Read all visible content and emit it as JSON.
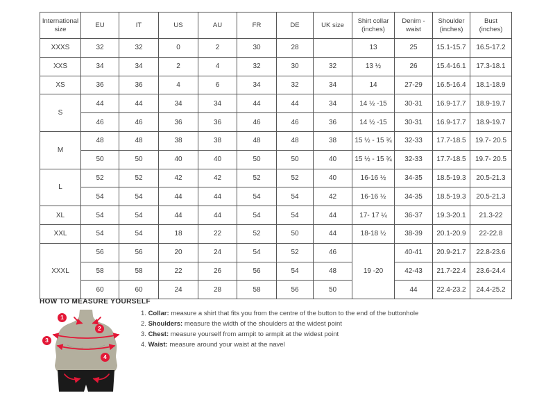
{
  "colors": {
    "accent": "#e31837",
    "torso": "#b3af9e",
    "shorts": "#1a1a1a",
    "border": "#555555",
    "text": "#3d3d3d"
  },
  "table": {
    "columns": [
      "International\nsize",
      "EU",
      "IT",
      "US",
      "AU",
      "FR",
      "DE",
      "UK size",
      "Shirt collar\n(inches)",
      "Denim -\nwaist",
      "Shoulder\n(inches)",
      "Bust (inches)"
    ],
    "rows": [
      [
        "XXXS",
        "32",
        "32",
        "0",
        "2",
        "30",
        "28",
        "",
        "13",
        "25",
        "15.1-15.7",
        "16.5-17.2"
      ],
      [
        "XXS",
        "34",
        "34",
        "2",
        "4",
        "32",
        "30",
        "32",
        "13 ½",
        "26",
        "15.4-16.1",
        "17.3-18.1"
      ],
      [
        "XS",
        "36",
        "36",
        "4",
        "6",
        "34",
        "32",
        "34",
        "14",
        "27-29",
        "16.5-16.4",
        "18.1-18.9"
      ],
      [
        {
          "text": "S",
          "rowspan": 2
        },
        "44",
        "44",
        "34",
        "34",
        "44",
        "44",
        "34",
        "14 ½ -15",
        "30-31",
        "16.9-17.7",
        "18.9-19.7"
      ],
      [
        "46",
        "46",
        "36",
        "36",
        "46",
        "46",
        "36",
        "14 ½ -15",
        "30-31",
        "16.9-17.7",
        "18.9-19.7"
      ],
      [
        {
          "text": "M",
          "rowspan": 2
        },
        "48",
        "48",
        "38",
        "38",
        "48",
        "48",
        "38",
        "15 ½ - 15 ¾",
        "32-33",
        "17.7-18.5",
        "19.7- 20.5"
      ],
      [
        "50",
        "50",
        "40",
        "40",
        "50",
        "50",
        "40",
        "15 ½ - 15 ¾",
        "32-33",
        "17.7-18.5",
        "19.7- 20.5"
      ],
      [
        {
          "text": "L",
          "rowspan": 2
        },
        "52",
        "52",
        "42",
        "42",
        "52",
        "52",
        "40",
        "16-16 ½",
        "34-35",
        "18.5-19.3",
        "20.5-21.3"
      ],
      [
        "54",
        "54",
        "44",
        "44",
        "54",
        "54",
        "42",
        "16-16 ½",
        "34-35",
        "18.5-19.3",
        "20.5-21.3"
      ],
      [
        "XL",
        "54",
        "54",
        "44",
        "44",
        "54",
        "54",
        "44",
        "17- 17 ¼",
        "36-37",
        "19.3-20.1",
        "21.3-22"
      ],
      [
        "XXL",
        "54",
        "54",
        "18",
        "22",
        "52",
        "50",
        "44",
        "18-18 ½",
        "38-39",
        "20.1-20.9",
        "22-22.8"
      ],
      [
        {
          "text": "XXXL",
          "rowspan": 3
        },
        "56",
        "56",
        "20",
        "24",
        "54",
        "52",
        "46",
        {
          "text": "19 -20",
          "rowspan": 3
        },
        "40-41",
        "20.9-21.7",
        "22.8-23.6"
      ],
      [
        "58",
        "58",
        "22",
        "26",
        "56",
        "54",
        "48",
        "42-43",
        "21.7-22.4",
        "23.6-24.4"
      ],
      [
        "60",
        "60",
        "24",
        "28",
        "58",
        "56",
        "50",
        "44",
        "22.4-23.2",
        "24.4-25.2"
      ]
    ]
  },
  "measure": {
    "title": "HOW TO MEASURE YOURSELF",
    "items": [
      {
        "num": "1",
        "label": "Collar",
        "text": "measure a shirt that fits you from the centre of the button to the end of the buttonhole"
      },
      {
        "num": "2",
        "label": "Shoulders",
        "text": "measure the width of the shoulders at the widest point"
      },
      {
        "num": "3",
        "label": "Chest",
        "text": "measure yourself from armpit to armpit at the widest point"
      },
      {
        "num": "4",
        "label": "Waist",
        "text": "measure around your waist at the navel"
      }
    ],
    "figure_markers": [
      "1",
      "2",
      "3",
      "4"
    ]
  }
}
